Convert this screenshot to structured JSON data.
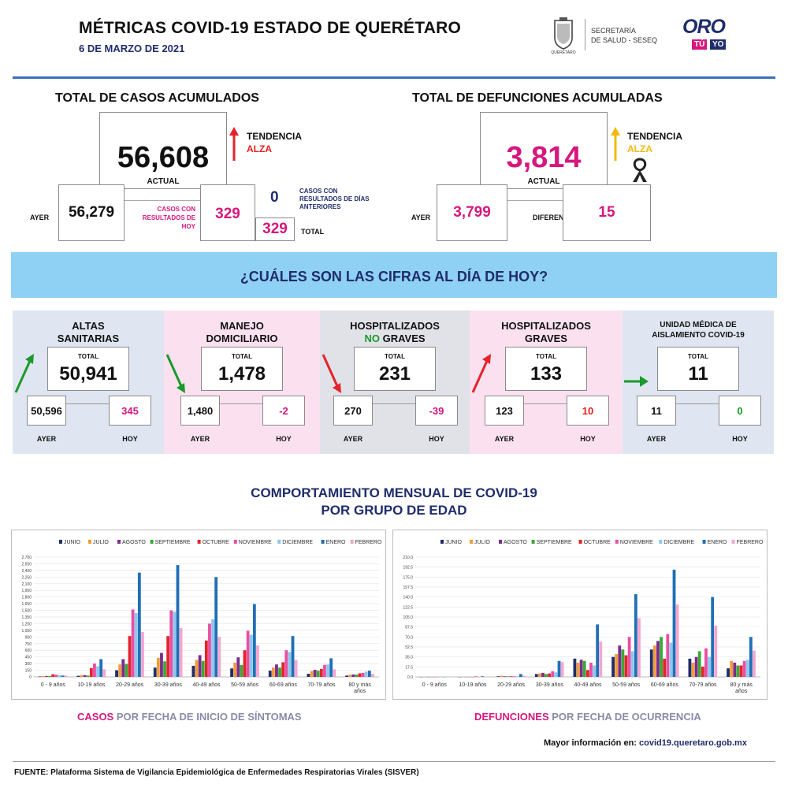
{
  "header": {
    "title": "MÉTRICAS COVID-19 ESTADO DE QUERÉTARO",
    "date": "6 DE MARZO DE 2021",
    "crest_text": "QUERÉTARO",
    "secretaria_line1": "SECRETARÍA",
    "secretaria_line2": "DE SALUD - SESEQ",
    "logo_oro": "ORO",
    "logo_tu": "TÚ",
    "logo_yo": "YO"
  },
  "cases": {
    "title": "TOTAL DE CASOS ACUMULADOS",
    "actual": "56,608",
    "actual_label": "ACTUAL",
    "trend_label": "TENDENCIA",
    "trend_value": "ALZA",
    "yesterday_label": "AYER",
    "yesterday": "56,279",
    "today_label": "CASOS CON RESULTADOS DE HOY",
    "today": "329",
    "previous": "0",
    "previous_label": "CASOS CON RESULTADOS DE DÍAS ANTERIORES",
    "total": "329",
    "total_label": "TOTAL"
  },
  "deaths": {
    "title": "TOTAL DE DEFUNCIONES ACUMULADAS",
    "actual": "3,814",
    "actual_label": "ACTUAL",
    "trend_label": "TENDENCIA",
    "trend_value": "ALZA",
    "yesterday_label": "AYER",
    "yesterday": "3,799",
    "diff_label": "DIFERENCIA",
    "diff": "15"
  },
  "banner": "¿CUÁLES SON LAS CIFRAS AL DÍA DE HOY?",
  "panels": [
    {
      "title1": "ALTAS",
      "title2": "SANITARIAS",
      "title2a": "",
      "total_label": "TOTAL",
      "total": "50,941",
      "ayer_label": "AYER",
      "ayer": "50,596",
      "hoy_label": "HOY",
      "hoy": "345",
      "bg": "#dfe6f1",
      "hoy_color": "#d6177e"
    },
    {
      "title1": "MANEJO",
      "title2": "DOMICILIARIO",
      "title2a": "",
      "total_label": "TOTAL",
      "total": "1,478",
      "ayer_label": "AYER",
      "ayer": "1,480",
      "hoy_label": "HOY",
      "hoy": "-2",
      "bg": "#fbe1ef",
      "hoy_color": "#d6177e"
    },
    {
      "title1": "HOSPITALIZADOS",
      "title2": "GRAVES",
      "title2a": "NO",
      "total_label": "TOTAL",
      "total": "231",
      "ayer_label": "AYER",
      "ayer": "270",
      "hoy_label": "HOY",
      "hoy": "-39",
      "bg": "#e1e1e8",
      "hoy_color": "#d6177e"
    },
    {
      "title1": "HOSPITALIZADOS",
      "title2": "GRAVES",
      "title2a": "",
      "total_label": "TOTAL",
      "total": "133",
      "ayer_label": "AYER",
      "ayer": "123",
      "hoy_label": "HOY",
      "hoy": "10",
      "bg": "#fbe1ef",
      "hoy_color": "#e41e1e"
    },
    {
      "title1": "UNIDAD MÉDICA DE",
      "title2": "AISLAMIENTO COVID-19",
      "title2a": "",
      "total_label": "TOTAL",
      "total": "11",
      "ayer_label": "AYER",
      "ayer": "11",
      "hoy_label": "HOY",
      "hoy": "0",
      "bg": "#dfe6f1",
      "hoy_color": "#1a9a2a"
    }
  ],
  "section_title_line1": "COMPORTAMIENTO MENSUAL DE COVID-19",
  "section_title_line2": "POR GRUPO DE EDAD",
  "caption_cases_a": "CASOS",
  "caption_cases_b": " POR FECHA DE INICIO DE SÍNTOMAS",
  "caption_deaths_a": "DEFUNCIONES",
  "caption_deaths_b": " POR FECHA DE OCURRENCIA",
  "more_info_label": "Mayor información en:",
  "more_info_url": "covid19.queretaro.gob.mx",
  "source_label": "FUENTE:",
  "source_text": " Plataforma Sistema  de Vigilancia Epidemiológica de Enfermedades Respiratorias Virales (SISVER)",
  "colors": {
    "navy": "#1f2d6b",
    "pink": "#d6177e",
    "banner": "#8fd0f5",
    "divider": "#3a6fbd",
    "series": [
      "#1f2d6b",
      "#f29b38",
      "#7b2b8e",
      "#3aa935",
      "#e4232b",
      "#ea4ea4",
      "#8dc7ee",
      "#1f6fb6",
      "#f4a6cf"
    ]
  },
  "chart_data": [
    {
      "type": "bar",
      "title": "",
      "xlabel": "",
      "ylabel": "",
      "ylim": [
        0,
        2700
      ],
      "yticks": [
        "0",
        "150",
        "300",
        "450",
        "600",
        "750",
        "900",
        "1,050",
        "1,200",
        "1,350",
        "1,500",
        "1,650",
        "1,800",
        "1,950",
        "2,100",
        "2,250",
        "2,400",
        "2,550",
        "2,700"
      ],
      "legend": "top",
      "grid": true,
      "categories": [
        "0 - 9 años",
        "10-19 años",
        "20-29 años",
        "30-39 años",
        "40-49 años",
        "50-59 años",
        "60-69 años",
        "70-79 años",
        "80 y más años"
      ],
      "series": [
        {
          "name": "JUNIO",
          "values": [
            10,
            25,
            150,
            210,
            250,
            190,
            140,
            70,
            30
          ]
        },
        {
          "name": "JULIO",
          "values": [
            20,
            40,
            280,
            430,
            380,
            320,
            210,
            130,
            50
          ]
        },
        {
          "name": "AGOSTO",
          "values": [
            20,
            40,
            400,
            540,
            490,
            440,
            280,
            160,
            55
          ]
        },
        {
          "name": "SEPTIEMBRE",
          "values": [
            20,
            30,
            290,
            350,
            360,
            270,
            210,
            140,
            50
          ]
        },
        {
          "name": "OCTUBRE",
          "values": [
            60,
            200,
            920,
            920,
            820,
            600,
            330,
            180,
            80
          ]
        },
        {
          "name": "NOVIEMBRE",
          "values": [
            50,
            300,
            1520,
            1500,
            1200,
            1040,
            600,
            270,
            90
          ]
        },
        {
          "name": "DICIEMBRE",
          "values": [
            40,
            240,
            1440,
            1470,
            1300,
            950,
            560,
            280,
            120
          ]
        },
        {
          "name": "ENERO",
          "values": [
            30,
            400,
            2350,
            2520,
            2250,
            1640,
            920,
            420,
            140
          ]
        },
        {
          "name": "FEBRERO",
          "values": [
            30,
            170,
            1010,
            1100,
            900,
            710,
            380,
            170,
            70
          ]
        }
      ]
    },
    {
      "type": "bar",
      "title": "",
      "xlabel": "",
      "ylabel": "",
      "ylim": [
        0,
        210
      ],
      "yticks": [
        "0.0",
        "17.5",
        "35.0",
        "52.5",
        "70.0",
        "87.5",
        "105.0",
        "122.5",
        "140.0",
        "157.5",
        "175.0",
        "192.5",
        "210.0"
      ],
      "legend": "top",
      "grid": true,
      "categories": [
        "0 - 9 años",
        "10-19 años",
        "20-29 años",
        "30-39 años",
        "40-49 años",
        "50-59 años",
        "60-69 años",
        "70-79 años",
        "80 y más años"
      ],
      "series": [
        {
          "name": "JUNIO",
          "values": [
            0,
            0,
            1,
            5,
            32,
            35,
            48,
            32,
            15
          ]
        },
        {
          "name": "JULIO",
          "values": [
            0,
            0,
            2,
            6,
            25,
            40,
            55,
            25,
            28
          ]
        },
        {
          "name": "AGOSTO",
          "values": [
            0,
            0,
            1,
            7,
            30,
            55,
            63,
            35,
            25
          ]
        },
        {
          "name": "SEPTIEMBRE",
          "values": [
            0,
            0,
            1,
            5,
            28,
            48,
            70,
            45,
            20
          ]
        },
        {
          "name": "OCTUBRE",
          "values": [
            0,
            0,
            1,
            6,
            12,
            38,
            32,
            18,
            20
          ]
        },
        {
          "name": "NOVIEMBRE",
          "values": [
            0,
            1,
            1,
            10,
            25,
            70,
            75,
            50,
            28
          ]
        },
        {
          "name": "DICIEMBRE",
          "values": [
            0,
            0,
            1,
            8,
            20,
            45,
            60,
            35,
            30
          ]
        },
        {
          "name": "ENERO",
          "values": [
            0,
            1,
            5,
            28,
            92,
            145,
            188,
            140,
            70
          ]
        },
        {
          "name": "FEBRERO",
          "values": [
            0,
            0,
            2,
            26,
            62,
            103,
            127,
            90,
            46
          ]
        }
      ]
    }
  ]
}
